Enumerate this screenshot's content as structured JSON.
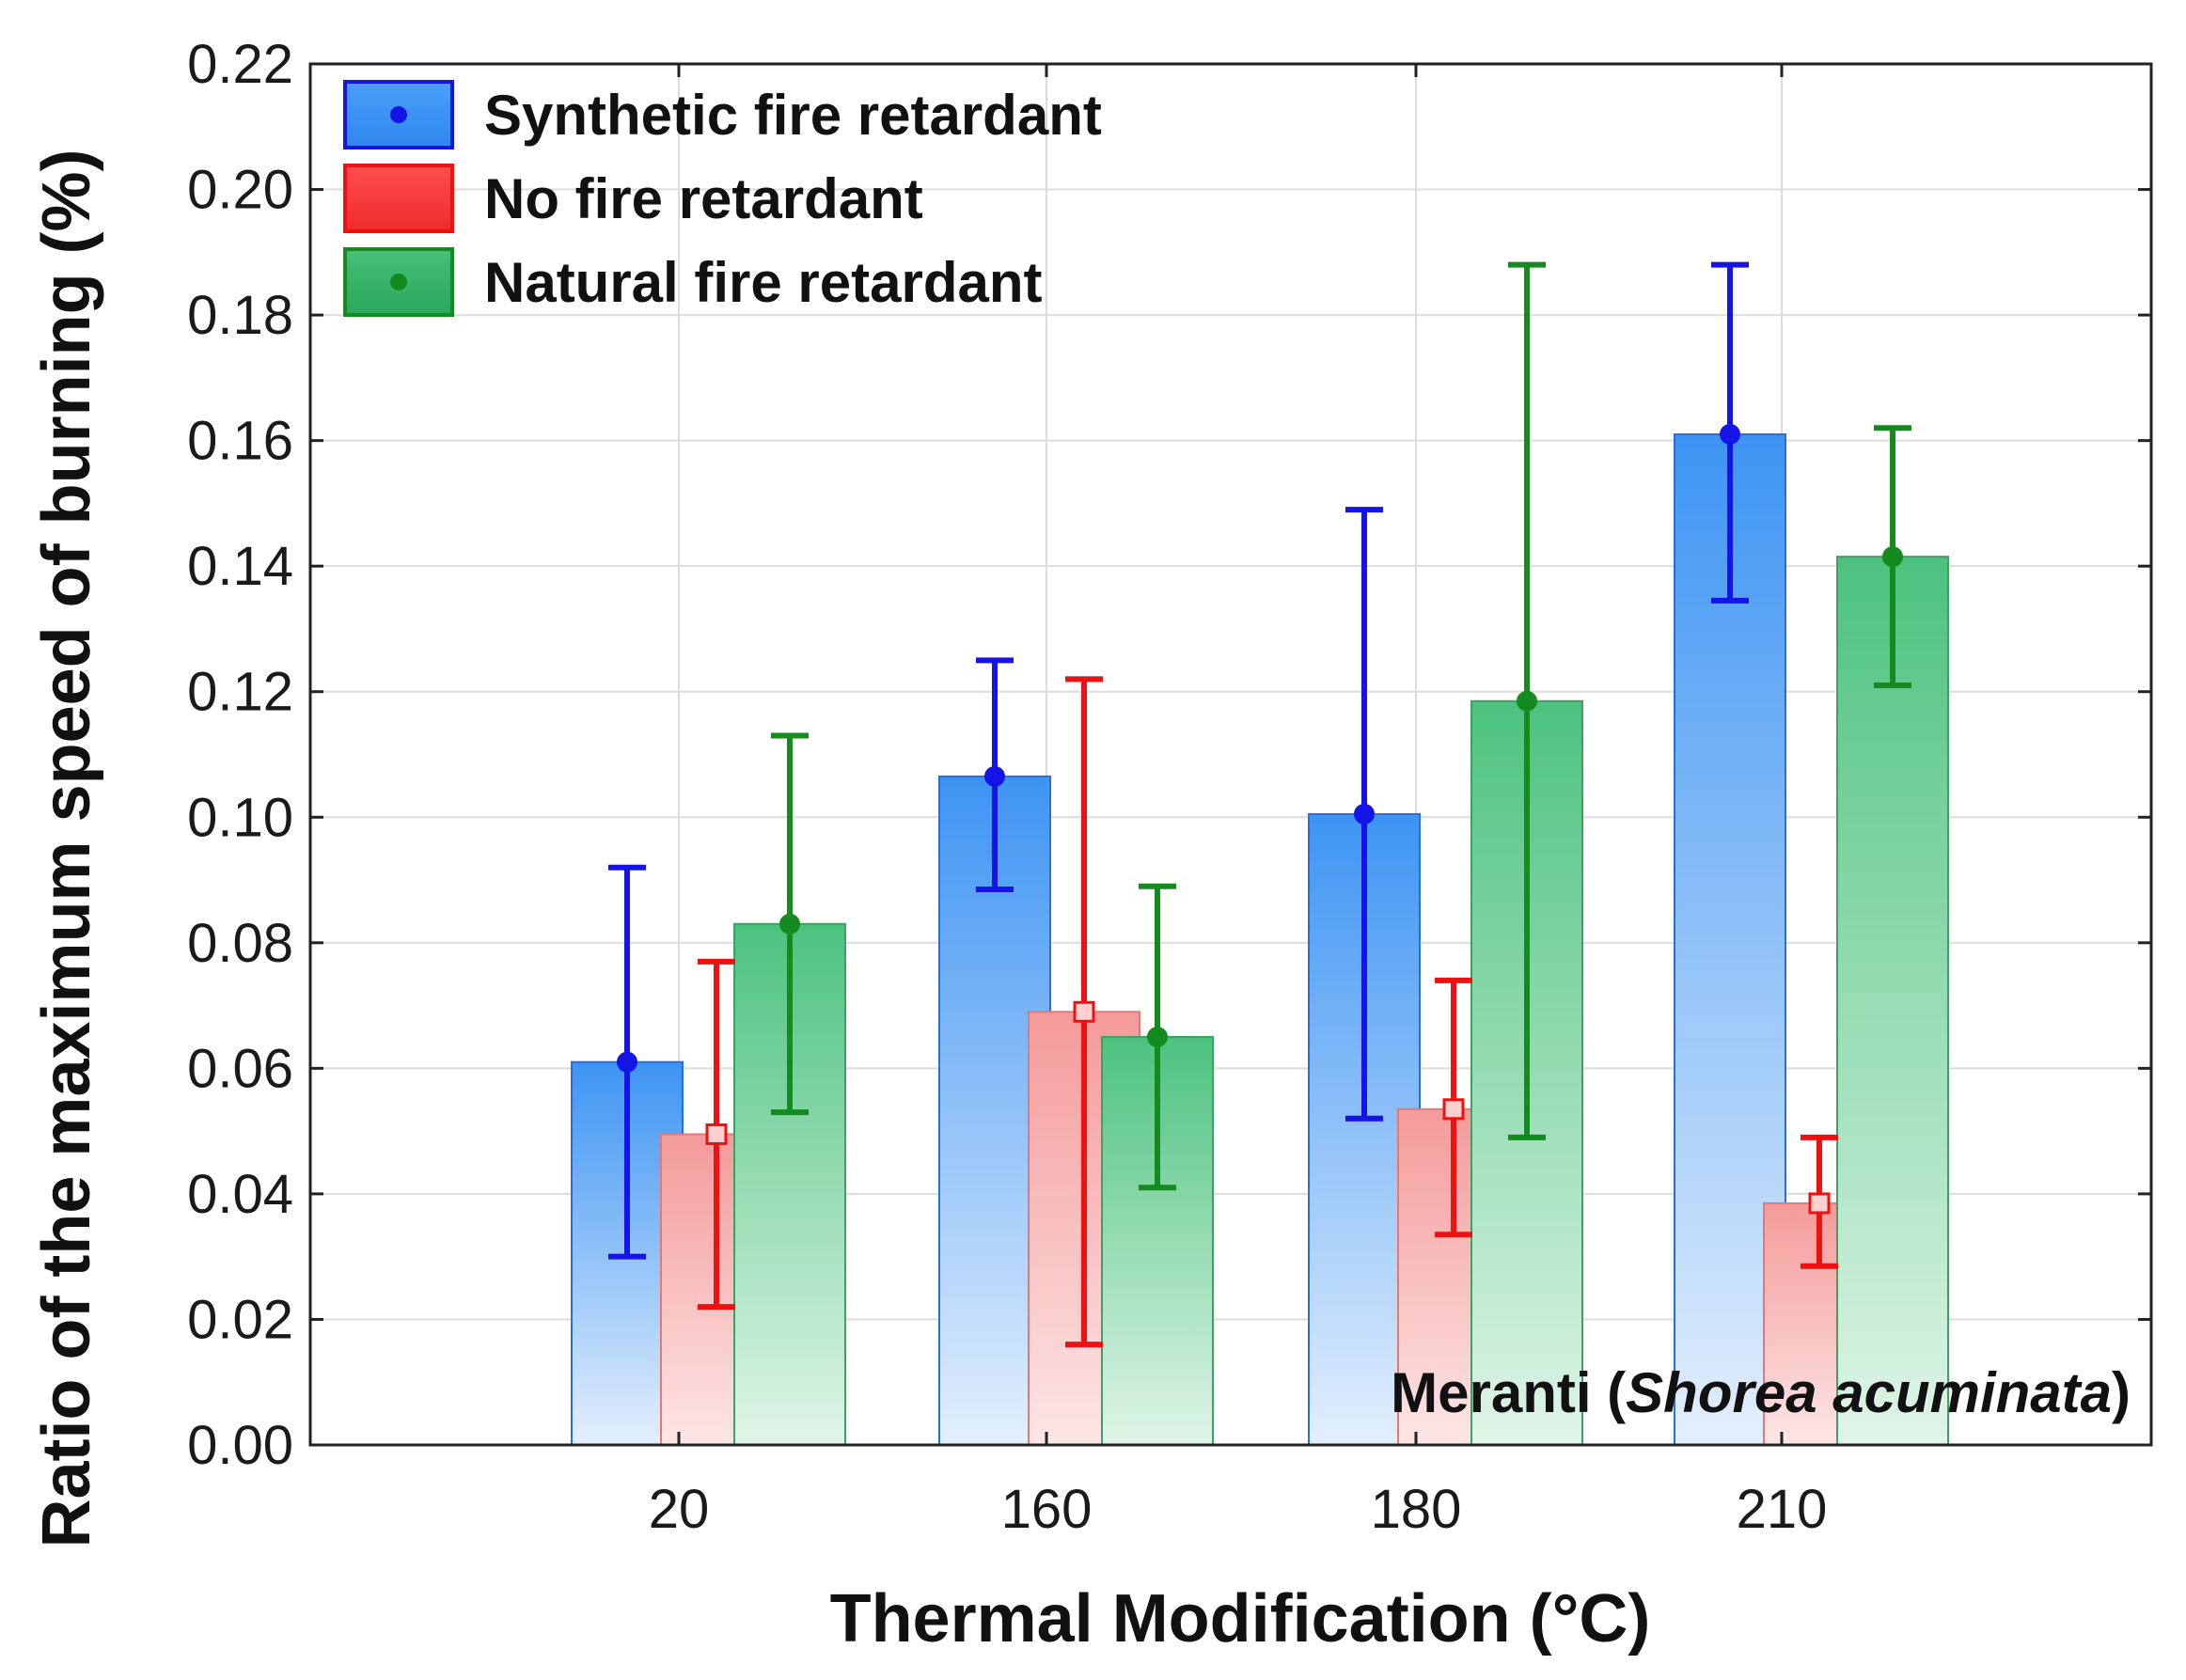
{
  "chart_data": {
    "type": "bar",
    "title": "",
    "xlabel": "Thermal Modification (°C)",
    "ylabel": "Ratio of the maximum speed of burning (%)",
    "categories": [
      "20",
      "160",
      "180",
      "210"
    ],
    "ylim": [
      0,
      0.22
    ],
    "yticks": [
      "0.00",
      "0.02",
      "0.04",
      "0.06",
      "0.08",
      "0.10",
      "0.12",
      "0.14",
      "0.16",
      "0.18",
      "0.20",
      "0.22"
    ],
    "grid": true,
    "legend_position": "top-left",
    "annotation": {
      "species": "Meranti",
      "scientific": "Shorea acuminata"
    },
    "series": [
      {
        "name": "Synthetic fire retardant",
        "color": "#2c7de6",
        "error_color": "#1414e6",
        "marker": "circle",
        "values": [
          0.061,
          0.1065,
          0.1005,
          0.161
        ],
        "err_low": [
          0.03,
          0.0885,
          0.052,
          0.1345
        ],
        "err_high": [
          0.092,
          0.125,
          0.149,
          0.188
        ]
      },
      {
        "name": "No fire retardant",
        "color": "#f25050",
        "error_color": "#ee1111",
        "marker": "square",
        "values": [
          0.0495,
          0.069,
          0.0535,
          0.0385
        ],
        "err_low": [
          0.022,
          0.016,
          0.0335,
          0.0285
        ],
        "err_high": [
          0.077,
          0.122,
          0.074,
          0.049
        ]
      },
      {
        "name": "Natural fire retardant",
        "color": "#2fae5c",
        "error_color": "#158a1e",
        "marker": "circle",
        "values": [
          0.083,
          0.065,
          0.1185,
          0.1415
        ],
        "err_low": [
          0.053,
          0.041,
          0.049,
          0.121
        ],
        "err_high": [
          0.113,
          0.089,
          0.188,
          0.162
        ]
      }
    ]
  }
}
